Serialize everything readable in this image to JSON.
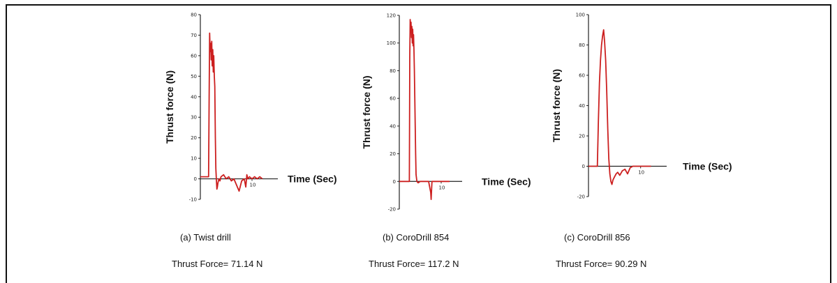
{
  "chart_data": [
    {
      "type": "line",
      "caption": "(a)  Twist drill",
      "result": "Thrust Force= 71.14 N",
      "xlabel": "Time (Sec)",
      "ylabel": "Thrust force (N)",
      "ylim": [
        -10,
        80
      ],
      "yticks": [
        "80",
        "70",
        "60",
        "50",
        "40",
        "30",
        "20",
        "10",
        "0",
        "-10"
      ],
      "xticks": [
        "10"
      ],
      "xtick_values": [
        10
      ],
      "xlim": [
        0,
        15
      ],
      "color": "#cc1f1f",
      "series": [
        {
          "x": [
            0,
            1.6,
            1.7,
            1.8,
            1.9,
            2.0,
            2.1,
            2.2,
            2.3,
            2.4,
            2.5,
            2.6,
            2.7,
            2.8,
            2.9,
            3.0,
            3.1,
            3.2,
            3.3,
            3.4,
            3.6,
            3.8,
            4.0,
            4.5,
            5.0,
            5.5,
            6.0,
            6.5,
            7.0,
            7.5,
            8.0,
            8.5,
            8.8,
            9.0,
            9.2,
            9.5,
            10.0,
            10.5,
            11.0,
            11.5,
            12.0
          ],
          "y": [
            1,
            1,
            40,
            71,
            62,
            66,
            58,
            67,
            55,
            63,
            52,
            60,
            50,
            45,
            20,
            5,
            0,
            -5,
            -4,
            -2,
            0,
            -1,
            1,
            2,
            0,
            1,
            -1,
            0,
            -3,
            -6,
            -1,
            0,
            -4,
            2,
            0,
            1,
            0,
            1,
            0,
            1,
            0
          ]
        }
      ]
    },
    {
      "type": "line",
      "caption": "(b)  CoroDrill 854",
      "result": "Thrust Force= 117.2 N",
      "xlabel": "Time (Sec)",
      "ylabel": "Thrust force (N)",
      "ylim": [
        -20,
        120
      ],
      "yticks": [
        "120",
        "100",
        "80",
        "60",
        "40",
        "20",
        "0",
        "-20"
      ],
      "xticks": [
        "10"
      ],
      "xtick_values": [
        10
      ],
      "xlim": [
        0,
        15
      ],
      "color": "#cc1f1f",
      "series": [
        {
          "x": [
            0,
            2.4,
            2.5,
            2.6,
            2.7,
            2.8,
            2.9,
            3.0,
            3.1,
            3.2,
            3.3,
            3.4,
            3.5,
            3.6,
            3.7,
            3.8,
            3.9,
            4.0,
            4.2,
            4.5,
            5.0,
            6.0,
            7.0,
            7.5,
            7.6,
            7.8,
            8.0,
            9.0,
            10.0,
            12.0
          ],
          "y": [
            0,
            0,
            90,
            117,
            108,
            115,
            104,
            112,
            100,
            110,
            98,
            106,
            95,
            80,
            60,
            40,
            20,
            5,
            0,
            -1,
            0,
            0,
            0,
            -8,
            -13,
            0,
            0,
            0,
            0,
            0
          ]
        }
      ]
    },
    {
      "type": "line",
      "caption": "(c)  CoroDrill 856",
      "result": "Thrust Force= 90.29 N",
      "xlabel": "Time (Sec)",
      "ylabel": "Thrust force (N)",
      "ylim": [
        -20,
        100
      ],
      "yticks": [
        "100",
        "80",
        "60",
        "40",
        "20",
        "0",
        "-20"
      ],
      "xticks": [
        "10"
      ],
      "xtick_values": [
        10
      ],
      "xlim": [
        0,
        15
      ],
      "color": "#cc1f1f",
      "series": [
        {
          "x": [
            0,
            1.7,
            1.9,
            2.1,
            2.3,
            2.5,
            2.7,
            2.9,
            3.1,
            3.3,
            3.5,
            3.7,
            3.9,
            4.1,
            4.3,
            4.5,
            4.7,
            5.0,
            5.3,
            5.6,
            6.0,
            6.5,
            7.0,
            7.5,
            8.0,
            8.5,
            9.0,
            10.0,
            11.0,
            12.0
          ],
          "y": [
            0,
            0,
            30,
            55,
            70,
            80,
            86,
            90,
            82,
            70,
            50,
            25,
            5,
            -5,
            -10,
            -12,
            -9,
            -7,
            -5,
            -4,
            -6,
            -3,
            -2,
            -5,
            -1,
            0,
            0,
            0,
            0,
            0
          ]
        }
      ]
    }
  ]
}
